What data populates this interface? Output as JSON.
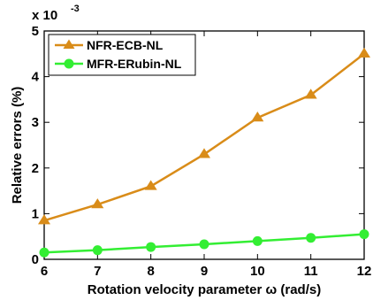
{
  "chart_data": {
    "type": "line",
    "title": "",
    "xlabel": "Rotation velocity parameter ω (rad/s)",
    "ylabel": "Relative errors (%)",
    "y_multiplier": {
      "base": "x 10",
      "exponent": "-3"
    },
    "x": [
      6,
      7,
      8,
      9,
      10,
      11,
      12
    ],
    "xlim": [
      6,
      12
    ],
    "ylim": [
      0,
      5
    ],
    "xticks": [
      6,
      7,
      8,
      9,
      10,
      11,
      12
    ],
    "yticks": [
      0,
      1,
      2,
      3,
      4,
      5
    ],
    "grid": false,
    "legend_position": "top-left",
    "series": [
      {
        "name": "NFR-ECB-NL",
        "color": "#D98C19",
        "marker": "triangle",
        "values": [
          0.85,
          1.2,
          1.6,
          2.3,
          3.1,
          3.6,
          4.5
        ]
      },
      {
        "name": "MFR-ERubin-NL",
        "color": "#33EE33",
        "marker": "circle",
        "values": [
          0.15,
          0.2,
          0.27,
          0.33,
          0.4,
          0.47,
          0.55
        ]
      }
    ]
  }
}
